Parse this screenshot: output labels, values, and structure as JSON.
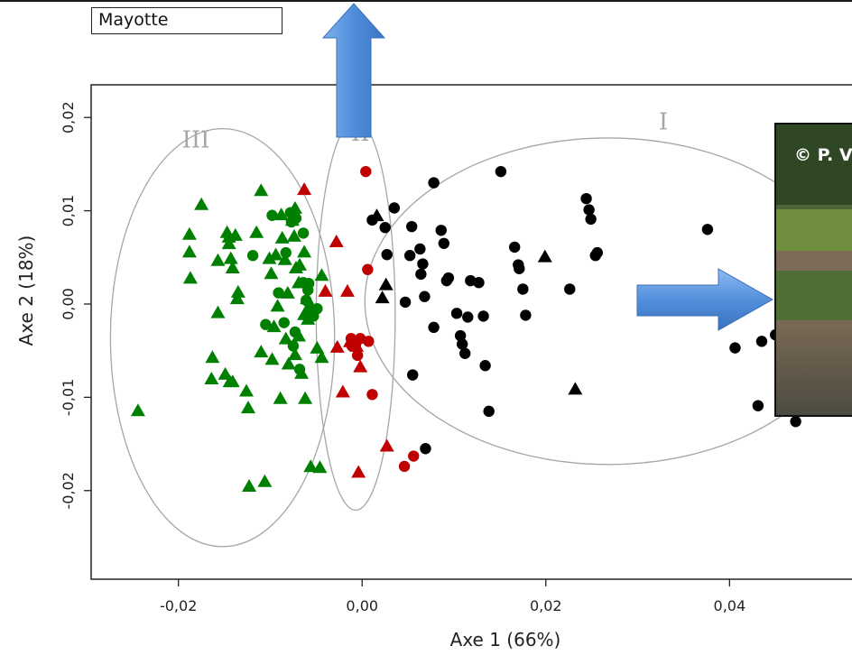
{
  "region_label": "Mayotte",
  "photo_credit": "© P. V",
  "chart_data": {
    "type": "scatter",
    "title": "",
    "xlabel": "Axe 1 (66%)",
    "ylabel": "Axe 2 (18%)",
    "xlim": [
      -0.0295,
      0.055
    ],
    "ylim": [
      -0.0295,
      0.0235
    ],
    "x_ticks": [
      {
        "value": -0.02,
        "label": "-0,02"
      },
      {
        "value": 0.0,
        "label": "0,00"
      },
      {
        "value": 0.02,
        "label": "0,02"
      },
      {
        "value": 0.04,
        "label": "0,04"
      }
    ],
    "y_ticks": [
      {
        "value": 0.02,
        "label": "0,02"
      },
      {
        "value": 0.01,
        "label": "0,01"
      },
      {
        "value": 0.0,
        "label": "0,00"
      },
      {
        "value": -0.01,
        "label": "-0,01"
      },
      {
        "value": -0.02,
        "label": "-0,02"
      }
    ],
    "grid": false,
    "groups": [
      {
        "label": "III",
        "color": "#008000"
      },
      {
        "label": "II",
        "color": "#c00000"
      },
      {
        "label": "I",
        "color": "#000000"
      }
    ],
    "ellipses": [
      {
        "group": "III",
        "cx": -0.0152,
        "cy": -0.0036,
        "rx": 0.0122,
        "ry": 0.0224
      },
      {
        "group": "II",
        "cx": -0.0007,
        "cy": -0.0012,
        "rx": 0.0043,
        "ry": 0.0209
      },
      {
        "group": "I",
        "cx": 0.0268,
        "cy": 0.0003,
        "rx": 0.0265,
        "ry": 0.0175
      }
    ],
    "series": [
      {
        "group": "III",
        "marker": "triangle",
        "color": "#008000",
        "points": [
          [
            -0.0244,
            -0.0115
          ],
          [
            -0.0175,
            0.0106
          ],
          [
            -0.0188,
            0.0074
          ],
          [
            -0.0188,
            0.0055
          ],
          [
            -0.0187,
            0.0027
          ],
          [
            -0.0157,
            0.0046
          ],
          [
            -0.0157,
            -0.001
          ],
          [
            -0.0163,
            -0.0058
          ],
          [
            -0.0164,
            -0.0081
          ],
          [
            -0.0149,
            -0.0076
          ],
          [
            -0.0144,
            -0.0084
          ],
          [
            -0.0141,
            -0.0084
          ],
          [
            -0.0135,
            0.0012
          ],
          [
            -0.0136,
            0.0005
          ],
          [
            -0.0126,
            -0.0094
          ],
          [
            -0.0124,
            -0.0112
          ],
          [
            -0.0145,
            0.0071
          ],
          [
            -0.0145,
            0.0064
          ],
          [
            -0.0143,
            0.0048
          ],
          [
            -0.0141,
            0.0038
          ],
          [
            -0.0147,
            0.0076
          ],
          [
            -0.0138,
            0.0073
          ],
          [
            -0.011,
            0.0121
          ],
          [
            -0.0115,
            0.0076
          ],
          [
            -0.011,
            -0.0052
          ],
          [
            -0.0099,
            0.0032
          ],
          [
            -0.0098,
            -0.006
          ],
          [
            -0.0094,
            0.0052
          ],
          [
            -0.0092,
            -0.0003
          ],
          [
            -0.0089,
            -0.0102
          ],
          [
            -0.0087,
            0.007
          ],
          [
            -0.0084,
            0.0047
          ],
          [
            -0.0083,
            -0.0038
          ],
          [
            -0.008,
            -0.0065
          ],
          [
            -0.0074,
            0.0072
          ],
          [
            -0.0073,
            0.0102
          ],
          [
            -0.0073,
            -0.0055
          ],
          [
            -0.0068,
            0.0041
          ],
          [
            -0.0066,
            -0.0075
          ],
          [
            -0.0063,
            0.0055
          ],
          [
            -0.0062,
            -0.0102
          ],
          [
            -0.006,
            0.0005
          ],
          [
            -0.0056,
            -0.0175
          ],
          [
            -0.0049,
            -0.0048
          ],
          [
            -0.0044,
            -0.0058
          ],
          [
            -0.0044,
            0.003
          ],
          [
            -0.0088,
            0.0095
          ],
          [
            -0.0069,
            0.0022
          ],
          [
            -0.0106,
            -0.0191
          ],
          [
            -0.0123,
            -0.0196
          ],
          [
            -0.0076,
            0.0089
          ],
          [
            -0.0081,
            0.0011
          ],
          [
            -0.0101,
            0.0048
          ],
          [
            -0.0096,
            -0.0025
          ],
          [
            -0.0069,
            -0.0035
          ],
          [
            -0.0063,
            -0.0012
          ],
          [
            -0.0046,
            -0.0176
          ],
          [
            -0.0059,
            -0.0017
          ],
          [
            -0.0072,
            0.0038
          ]
        ]
      },
      {
        "group": "III",
        "marker": "circle",
        "color": "#008000",
        "points": [
          [
            -0.0119,
            0.0052
          ],
          [
            -0.0098,
            0.0095
          ],
          [
            -0.0078,
            0.0098
          ],
          [
            -0.0077,
            0.0088
          ],
          [
            -0.0072,
            0.0092
          ],
          [
            -0.0064,
            0.0023
          ],
          [
            -0.0061,
            0.0004
          ],
          [
            -0.0057,
            -0.0005
          ],
          [
            -0.0058,
            0.0022
          ],
          [
            -0.0053,
            -0.0013
          ],
          [
            -0.0049,
            -0.0005
          ],
          [
            -0.0085,
            -0.002
          ],
          [
            -0.0073,
            -0.003
          ],
          [
            -0.0083,
            0.0055
          ],
          [
            -0.0064,
            0.0076
          ],
          [
            -0.0068,
            -0.007
          ],
          [
            -0.0059,
            0.0015
          ],
          [
            -0.0091,
            0.0012
          ],
          [
            -0.0105,
            -0.0022
          ],
          [
            -0.0075,
            -0.0045
          ]
        ]
      },
      {
        "group": "II",
        "marker": "triangle",
        "color": "#c00000",
        "points": [
          [
            -0.0063,
            0.0122
          ],
          [
            -0.0028,
            0.0066
          ],
          [
            -0.004,
            0.0013
          ],
          [
            -0.0016,
            0.0013
          ],
          [
            -0.0027,
            -0.0047
          ],
          [
            -0.0021,
            -0.0095
          ],
          [
            -0.0002,
            -0.0068
          ],
          [
            0.0027,
            -0.0153
          ],
          [
            -0.0004,
            -0.0181
          ],
          [
            -0.0006,
            -0.0046
          ],
          [
            -0.0013,
            -0.0041
          ]
        ]
      },
      {
        "group": "II",
        "marker": "circle",
        "color": "#c00000",
        "points": [
          [
            0.0004,
            0.0142
          ],
          [
            0.0006,
            0.0037
          ],
          [
            -0.0012,
            -0.0037
          ],
          [
            -0.0007,
            -0.0043
          ],
          [
            -0.0002,
            -0.0037
          ],
          [
            0.0007,
            -0.004
          ],
          [
            0.0011,
            -0.0097
          ],
          [
            0.0056,
            -0.0163
          ],
          [
            0.0046,
            -0.0174
          ],
          [
            -0.0005,
            -0.0055
          ],
          [
            -0.0011,
            -0.0045
          ]
        ]
      },
      {
        "group": "I",
        "marker": "triangle",
        "color": "#000000",
        "points": [
          [
            0.0016,
            0.0094
          ],
          [
            0.0026,
            0.002
          ],
          [
            0.0022,
            0.0006
          ],
          [
            0.0199,
            0.005
          ],
          [
            0.0232,
            -0.0092
          ]
        ]
      },
      {
        "group": "I",
        "marker": "circle",
        "color": "#000000",
        "points": [
          [
            0.0011,
            0.009
          ],
          [
            0.0025,
            0.0082
          ],
          [
            0.0035,
            0.0103
          ],
          [
            0.0027,
            0.0053
          ],
          [
            0.0047,
            0.0002
          ],
          [
            0.0054,
            0.0083
          ],
          [
            0.0052,
            0.0052
          ],
          [
            0.0063,
            0.0059
          ],
          [
            0.0064,
            0.0032
          ],
          [
            0.0068,
            0.0008
          ],
          [
            0.0066,
            0.0043
          ],
          [
            0.0078,
            0.013
          ],
          [
            0.0078,
            -0.0025
          ],
          [
            0.0086,
            0.0079
          ],
          [
            0.0089,
            0.0065
          ],
          [
            0.0092,
            0.0025
          ],
          [
            0.0094,
            0.0028
          ],
          [
            0.0103,
            -0.001
          ],
          [
            0.0107,
            -0.0034
          ],
          [
            0.0109,
            -0.0043
          ],
          [
            0.0112,
            -0.0053
          ],
          [
            0.0115,
            -0.0014
          ],
          [
            0.0118,
            0.0025
          ],
          [
            0.0127,
            0.0023
          ],
          [
            0.0132,
            -0.0013
          ],
          [
            0.0134,
            -0.0066
          ],
          [
            0.0138,
            -0.0115
          ],
          [
            0.0151,
            0.0142
          ],
          [
            0.0166,
            0.0061
          ],
          [
            0.017,
            0.0042
          ],
          [
            0.0171,
            0.0038
          ],
          [
            0.0175,
            0.0016
          ],
          [
            0.0178,
            -0.0012
          ],
          [
            0.0226,
            0.0016
          ],
          [
            0.0244,
            0.0113
          ],
          [
            0.0247,
            0.0101
          ],
          [
            0.0249,
            0.0091
          ],
          [
            0.0254,
            0.0052
          ],
          [
            0.0256,
            0.0055
          ],
          [
            0.0376,
            0.008
          ],
          [
            0.0406,
            -0.0047
          ],
          [
            0.0431,
            -0.0109
          ],
          [
            0.0435,
            -0.004
          ],
          [
            0.045,
            -0.0033
          ],
          [
            0.0472,
            -0.0126
          ],
          [
            0.0055,
            -0.0076
          ],
          [
            0.0069,
            -0.0155
          ]
        ]
      }
    ]
  }
}
